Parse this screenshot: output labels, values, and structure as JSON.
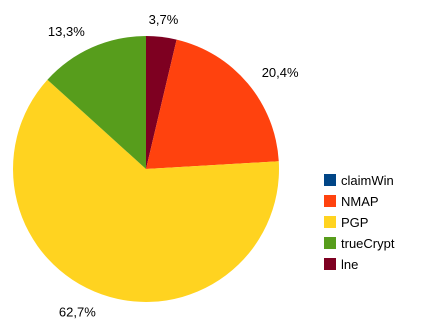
{
  "chart_data": {
    "type": "pie",
    "start_slice": "lne",
    "direction": "clockwise",
    "legend_position": "right",
    "series": [
      {
        "name": "claimWin",
        "value": 0.0,
        "label": "",
        "color": "#004586"
      },
      {
        "name": "NMAP",
        "value": 20.4,
        "label": "20,4%",
        "color": "#ff420e"
      },
      {
        "name": "PGP",
        "value": 62.7,
        "label": "62,7%",
        "color": "#ffd320"
      },
      {
        "name": "trueCrypt",
        "value": 13.3,
        "label": "13,3%",
        "color": "#579d1c"
      },
      {
        "name": "lne",
        "value": 3.7,
        "label": "3,7%",
        "color": "#7e0021"
      }
    ]
  }
}
